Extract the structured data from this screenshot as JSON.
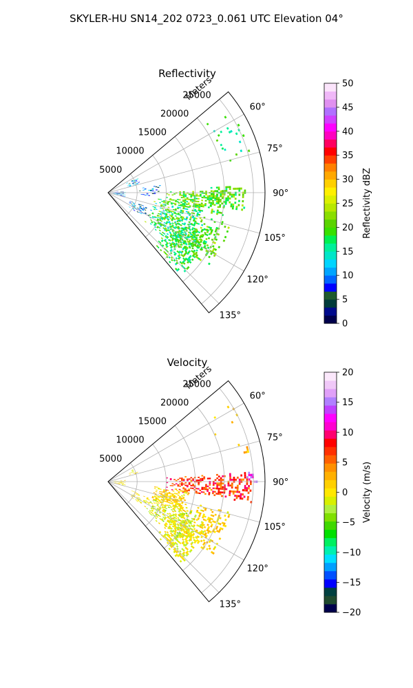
{
  "figure": {
    "suptitle": "SKYLER-HU  SN14_202  0723_0.061 UTC Elevation 04°"
  },
  "chart_data": [
    {
      "type": "heatmap",
      "projection": "polar-sector",
      "title": "Reflectivity",
      "radial_label": "Meters",
      "radial_ticks": [
        5000,
        10000,
        15000,
        20000,
        25000
      ],
      "radial_tick_labels": [
        "5000",
        "10000",
        "15000",
        "20000",
        "25000"
      ],
      "rmax": 27000,
      "theta_min_deg": 50,
      "theta_max_deg": 140,
      "theta_ticks": [
        60,
        75,
        90,
        105,
        120,
        135
      ],
      "theta_tick_labels": [
        "60°",
        "75°",
        "90°",
        "105°",
        "120°",
        "135°"
      ],
      "grid": true,
      "colorbar": {
        "label": "Reflectivity dBZ",
        "vmin": 0,
        "vmax": 50,
        "ticks": [
          0,
          5,
          10,
          15,
          20,
          25,
          30,
          35,
          40,
          45,
          50
        ],
        "tick_labels": [
          "0",
          "5",
          "10",
          "15",
          "20",
          "25",
          "30",
          "35",
          "40",
          "45",
          "50"
        ],
        "colors": [
          "#00004c",
          "#000a8c",
          "#003b3b",
          "#1f5a2e",
          "#0000ff",
          "#0066ff",
          "#00a5ff",
          "#00d5ff",
          "#00e6c8",
          "#00f09a",
          "#00f050",
          "#38e000",
          "#5ad400",
          "#8ade00",
          "#b8e800",
          "#dcf000",
          "#fff000",
          "#ffd000",
          "#ffa800",
          "#ff8000",
          "#ff4000",
          "#ff0000",
          "#ff0060",
          "#ff00c0",
          "#ff00ff",
          "#d040ff",
          "#b070ff",
          "#e090f0",
          "#f0b8f8",
          "#fbe4fb"
        ]
      },
      "echo_regions": [
        {
          "r_m": [
            8000,
            17000
          ],
          "theta_deg": [
            96,
            128
          ],
          "value": 17,
          "value_range": [
            12,
            24
          ],
          "density": 0.45
        },
        {
          "r_m": [
            10000,
            20000
          ],
          "theta_deg": [
            88,
            101
          ],
          "value": 19,
          "value_range": [
            15,
            25
          ],
          "density": 0.5
        },
        {
          "r_m": [
            17000,
            24000
          ],
          "theta_deg": [
            86,
            97
          ],
          "value": 20,
          "value_range": [
            16,
            24
          ],
          "density": 0.45
        },
        {
          "r_m": [
            12000,
            19000
          ],
          "theta_deg": [
            110,
            138
          ],
          "value": 18,
          "value_range": [
            14,
            23
          ],
          "density": 0.45
        },
        {
          "r_m": [
            16000,
            22000
          ],
          "theta_deg": [
            104,
            126
          ],
          "value": 20,
          "value_range": [
            17,
            24
          ],
          "density": 0.3
        },
        {
          "r_m": [
            500,
            3000
          ],
          "theta_deg": [
            84,
            105
          ],
          "value": 9,
          "value_range": [
            2,
            14
          ],
          "density": 0.4
        },
        {
          "r_m": [
            3500,
            5500
          ],
          "theta_deg": [
            62,
            75
          ],
          "value": 11,
          "value_range": [
            5,
            14
          ],
          "density": 0.3
        },
        {
          "r_m": [
            4000,
            8000
          ],
          "theta_deg": [
            110,
            124
          ],
          "value": 10,
          "value_range": [
            4,
            14
          ],
          "density": 0.35
        },
        {
          "r_m": [
            5000,
            9000
          ],
          "theta_deg": [
            80,
            94
          ],
          "value": 9,
          "value_range": [
            3,
            14
          ],
          "density": 0.12
        },
        {
          "r_m": [
            20000,
            26000
          ],
          "theta_deg": [
            55,
            80
          ],
          "value": 18,
          "value_range": [
            14,
            22
          ],
          "density": 0.04
        }
      ]
    },
    {
      "type": "heatmap",
      "projection": "polar-sector",
      "title": "Velocity",
      "radial_label": "Meters",
      "radial_ticks": [
        5000,
        10000,
        15000,
        20000,
        25000
      ],
      "radial_tick_labels": [
        "5000",
        "10000",
        "15000",
        "20000",
        "25000"
      ],
      "rmax": 27000,
      "theta_min_deg": 50,
      "theta_max_deg": 140,
      "theta_ticks": [
        60,
        75,
        90,
        105,
        120,
        135
      ],
      "theta_tick_labels": [
        "60°",
        "75°",
        "90°",
        "105°",
        "120°",
        "135°"
      ],
      "grid": true,
      "colorbar": {
        "label": "Velocity (m/s)",
        "vmin": -20,
        "vmax": 20,
        "ticks": [
          -20,
          -15,
          -10,
          -5,
          0,
          5,
          10,
          15,
          20
        ],
        "tick_labels": [
          "−20",
          "−15",
          "−10",
          "−5",
          "0",
          "5",
          "10",
          "15",
          "20"
        ],
        "colors": [
          "#00004c",
          "#1f4a2e",
          "#004040",
          "#0000ff",
          "#0050ff",
          "#00a0ff",
          "#00e0ff",
          "#00f0b0",
          "#00f060",
          "#00e000",
          "#40d800",
          "#80e000",
          "#b0f040",
          "#d8f000",
          "#ffe800",
          "#ffd000",
          "#ffb000",
          "#ff9000",
          "#ff6000",
          "#ff3000",
          "#ff0000",
          "#ff0070",
          "#ff00d0",
          "#ff00ff",
          "#c040ff",
          "#b080ff",
          "#e0a0f8",
          "#f0c8f8",
          "#fbe8fb"
        ]
      },
      "echo_regions": [
        {
          "r_m": [
            10000,
            25000
          ],
          "theta_deg": [
            86,
            98
          ],
          "value": 7,
          "value_range": [
            4,
            10
          ],
          "density": 0.5
        },
        {
          "r_m": [
            8000,
            14000
          ],
          "theta_deg": [
            96,
            112
          ],
          "value": 1,
          "value_range": [
            -1,
            3
          ],
          "density": 0.5
        },
        {
          "r_m": [
            8000,
            17000
          ],
          "theta_deg": [
            108,
            130
          ],
          "value": -1,
          "value_range": [
            -4,
            2
          ],
          "density": 0.45
        },
        {
          "r_m": [
            12000,
            19000
          ],
          "theta_deg": [
            112,
            138
          ],
          "value": 0,
          "value_range": [
            -3,
            2
          ],
          "density": 0.45
        },
        {
          "r_m": [
            16000,
            22000
          ],
          "theta_deg": [
            104,
            126
          ],
          "value": 1,
          "value_range": [
            -1,
            3
          ],
          "density": 0.3
        },
        {
          "r_m": [
            500,
            3000
          ],
          "theta_deg": [
            84,
            105
          ],
          "value": 0,
          "value_range": [
            -2,
            2
          ],
          "density": 0.4
        },
        {
          "r_m": [
            3500,
            5500
          ],
          "theta_deg": [
            62,
            75
          ],
          "value": 0,
          "value_range": [
            -2,
            2
          ],
          "density": 0.3
        },
        {
          "r_m": [
            4000,
            8000
          ],
          "theta_deg": [
            110,
            124
          ],
          "value": 0,
          "value_range": [
            -2,
            2
          ],
          "density": 0.3
        },
        {
          "r_m": [
            23500,
            25500
          ],
          "theta_deg": [
            86,
            90
          ],
          "value": 12,
          "value_range": [
            10,
            16
          ],
          "density": 0.5
        },
        {
          "r_m": [
            20000,
            26000
          ],
          "theta_deg": [
            55,
            80
          ],
          "value": 2,
          "value_range": [
            0,
            4
          ],
          "density": 0.04
        }
      ]
    }
  ]
}
